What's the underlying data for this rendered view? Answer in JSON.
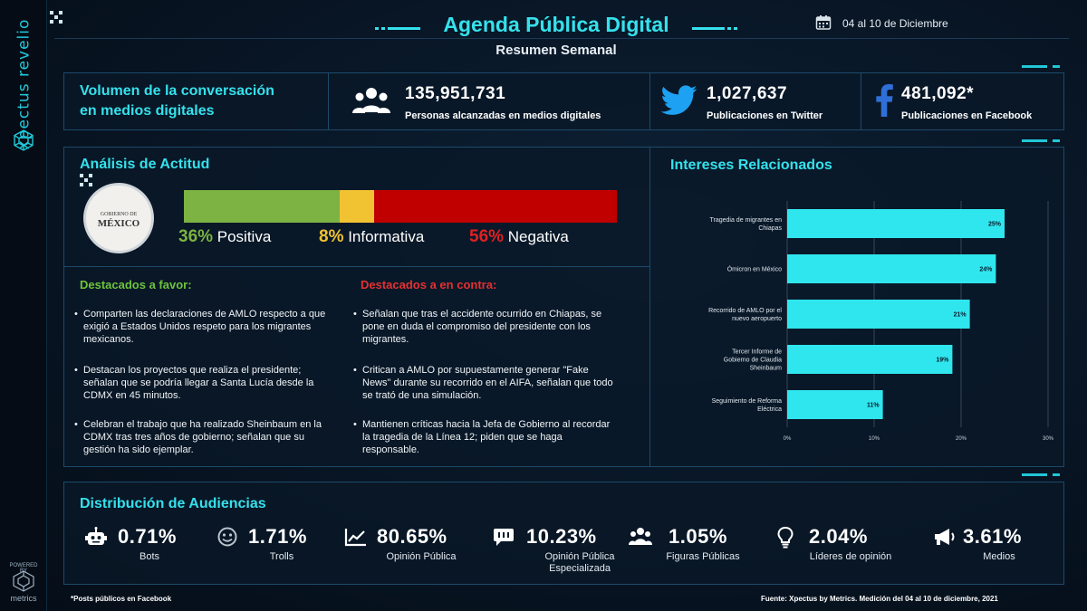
{
  "brand": {
    "name": "xpectus revelio",
    "powered_by": "POWERED BY",
    "metrics_label": "metrics"
  },
  "header": {
    "title": "Agenda Pública Digital",
    "subtitle": "Resumen Semanal",
    "date": "04 al 10 de Diciembre"
  },
  "volume": {
    "title_line1": "Volumen de la conversación",
    "title_line2": "en medios digitales",
    "metrics": [
      {
        "icon": "people-icon",
        "value": "135,951,731",
        "label": "Personas alcanzadas en medios digitales"
      },
      {
        "icon": "twitter-icon",
        "value": "1,027,637",
        "label": "Publicaciones en Twitter"
      },
      {
        "icon": "facebook-icon",
        "value": "481,092*",
        "label": "Publicaciones en Facebook"
      }
    ]
  },
  "attitude": {
    "title": "Análisis de Actitud",
    "seal_line1": "GOBIERNO DE",
    "seal_line2": "MÉXICO",
    "segments": [
      {
        "pct_text": "36%",
        "label": "Positiva",
        "value": 36,
        "color": "#7cb342"
      },
      {
        "pct_text": "8%",
        "label": "Informativa",
        "value": 8,
        "color": "#f1c232"
      },
      {
        "pct_text": "56%",
        "label": "Negativa",
        "value": 56,
        "color": "#c00000"
      }
    ],
    "favor": {
      "title": "Destacados a favor:",
      "items": [
        "Comparten las declaraciones de AMLO respecto a que exigió a Estados Unidos respeto para los migrantes mexicanos.",
        "Destacan los proyectos que realiza el presidente; señalan que se podría llegar a Santa Lucía desde la CDMX en 45 minutos.",
        "Celebran el trabajo que ha realizado Sheinbaum en la CDMX tras tres años de gobierno; señalan que su gestión ha sido ejemplar."
      ]
    },
    "contra": {
      "title": "Destacados a en contra:",
      "items": [
        "Señalan que tras el accidente ocurrido en Chiapas, se pone en duda el compromiso del presidente con los migrantes.",
        "Critican a AMLO por supuestamente generar \"Fake News\" durante su recorrido en el AIFA, señalan que todo se trató de una simulación.",
        "Mantienen críticas hacia la Jefa de Gobierno al recordar la tragedia de la Línea 12; piden que se haga responsable."
      ]
    }
  },
  "interests": {
    "title": "Intereses Relacionados",
    "chart_data": {
      "type": "bar",
      "orientation": "horizontal",
      "categories": [
        [
          "Tragedia de migrantes en",
          "Chiapas"
        ],
        [
          "Ómicron en México"
        ],
        [
          "Recorrido de AMLO por el",
          "nuevo aeropuerto"
        ],
        [
          "Tercer Informe de",
          "Gobierno de Claudia",
          "Sheinbaum"
        ],
        [
          "Seguimiento de Reforma",
          "Eléctrica"
        ]
      ],
      "values": [
        25,
        24,
        21,
        19,
        11
      ],
      "value_labels": [
        "25%",
        "24%",
        "21%",
        "19%",
        "11%"
      ],
      "x_ticks": [
        "0%",
        "10%",
        "20%",
        "30%"
      ],
      "xlim": [
        0,
        30
      ],
      "bar_color": "#2fe6ee",
      "grid": true
    }
  },
  "audiences": {
    "title": "Distribución de Audiencias",
    "items": [
      {
        "icon": "robot-icon",
        "value": "0.71%",
        "label": "Bots"
      },
      {
        "icon": "troll-face-icon",
        "value": "1.71%",
        "label": "Trolls"
      },
      {
        "icon": "trend-chart-icon",
        "value": "80.65%",
        "label": "Opinión Pública"
      },
      {
        "icon": "chat-bubble-icon",
        "value": "10.23%",
        "label": "Opinión Pública Especializada"
      },
      {
        "icon": "group-icon",
        "value": "1.05%",
        "label": "Figuras Públicas"
      },
      {
        "icon": "lightbulb-icon",
        "value": "2.04%",
        "label": "Líderes de opinión"
      },
      {
        "icon": "megaphone-icon",
        "value": "3.61%",
        "label": "Medios"
      }
    ]
  },
  "footer": {
    "note": "*Posts públicos en Facebook",
    "source": "Fuente: Xpectus by Metrics. Medición del 04 al 10 de diciembre, 2021"
  }
}
